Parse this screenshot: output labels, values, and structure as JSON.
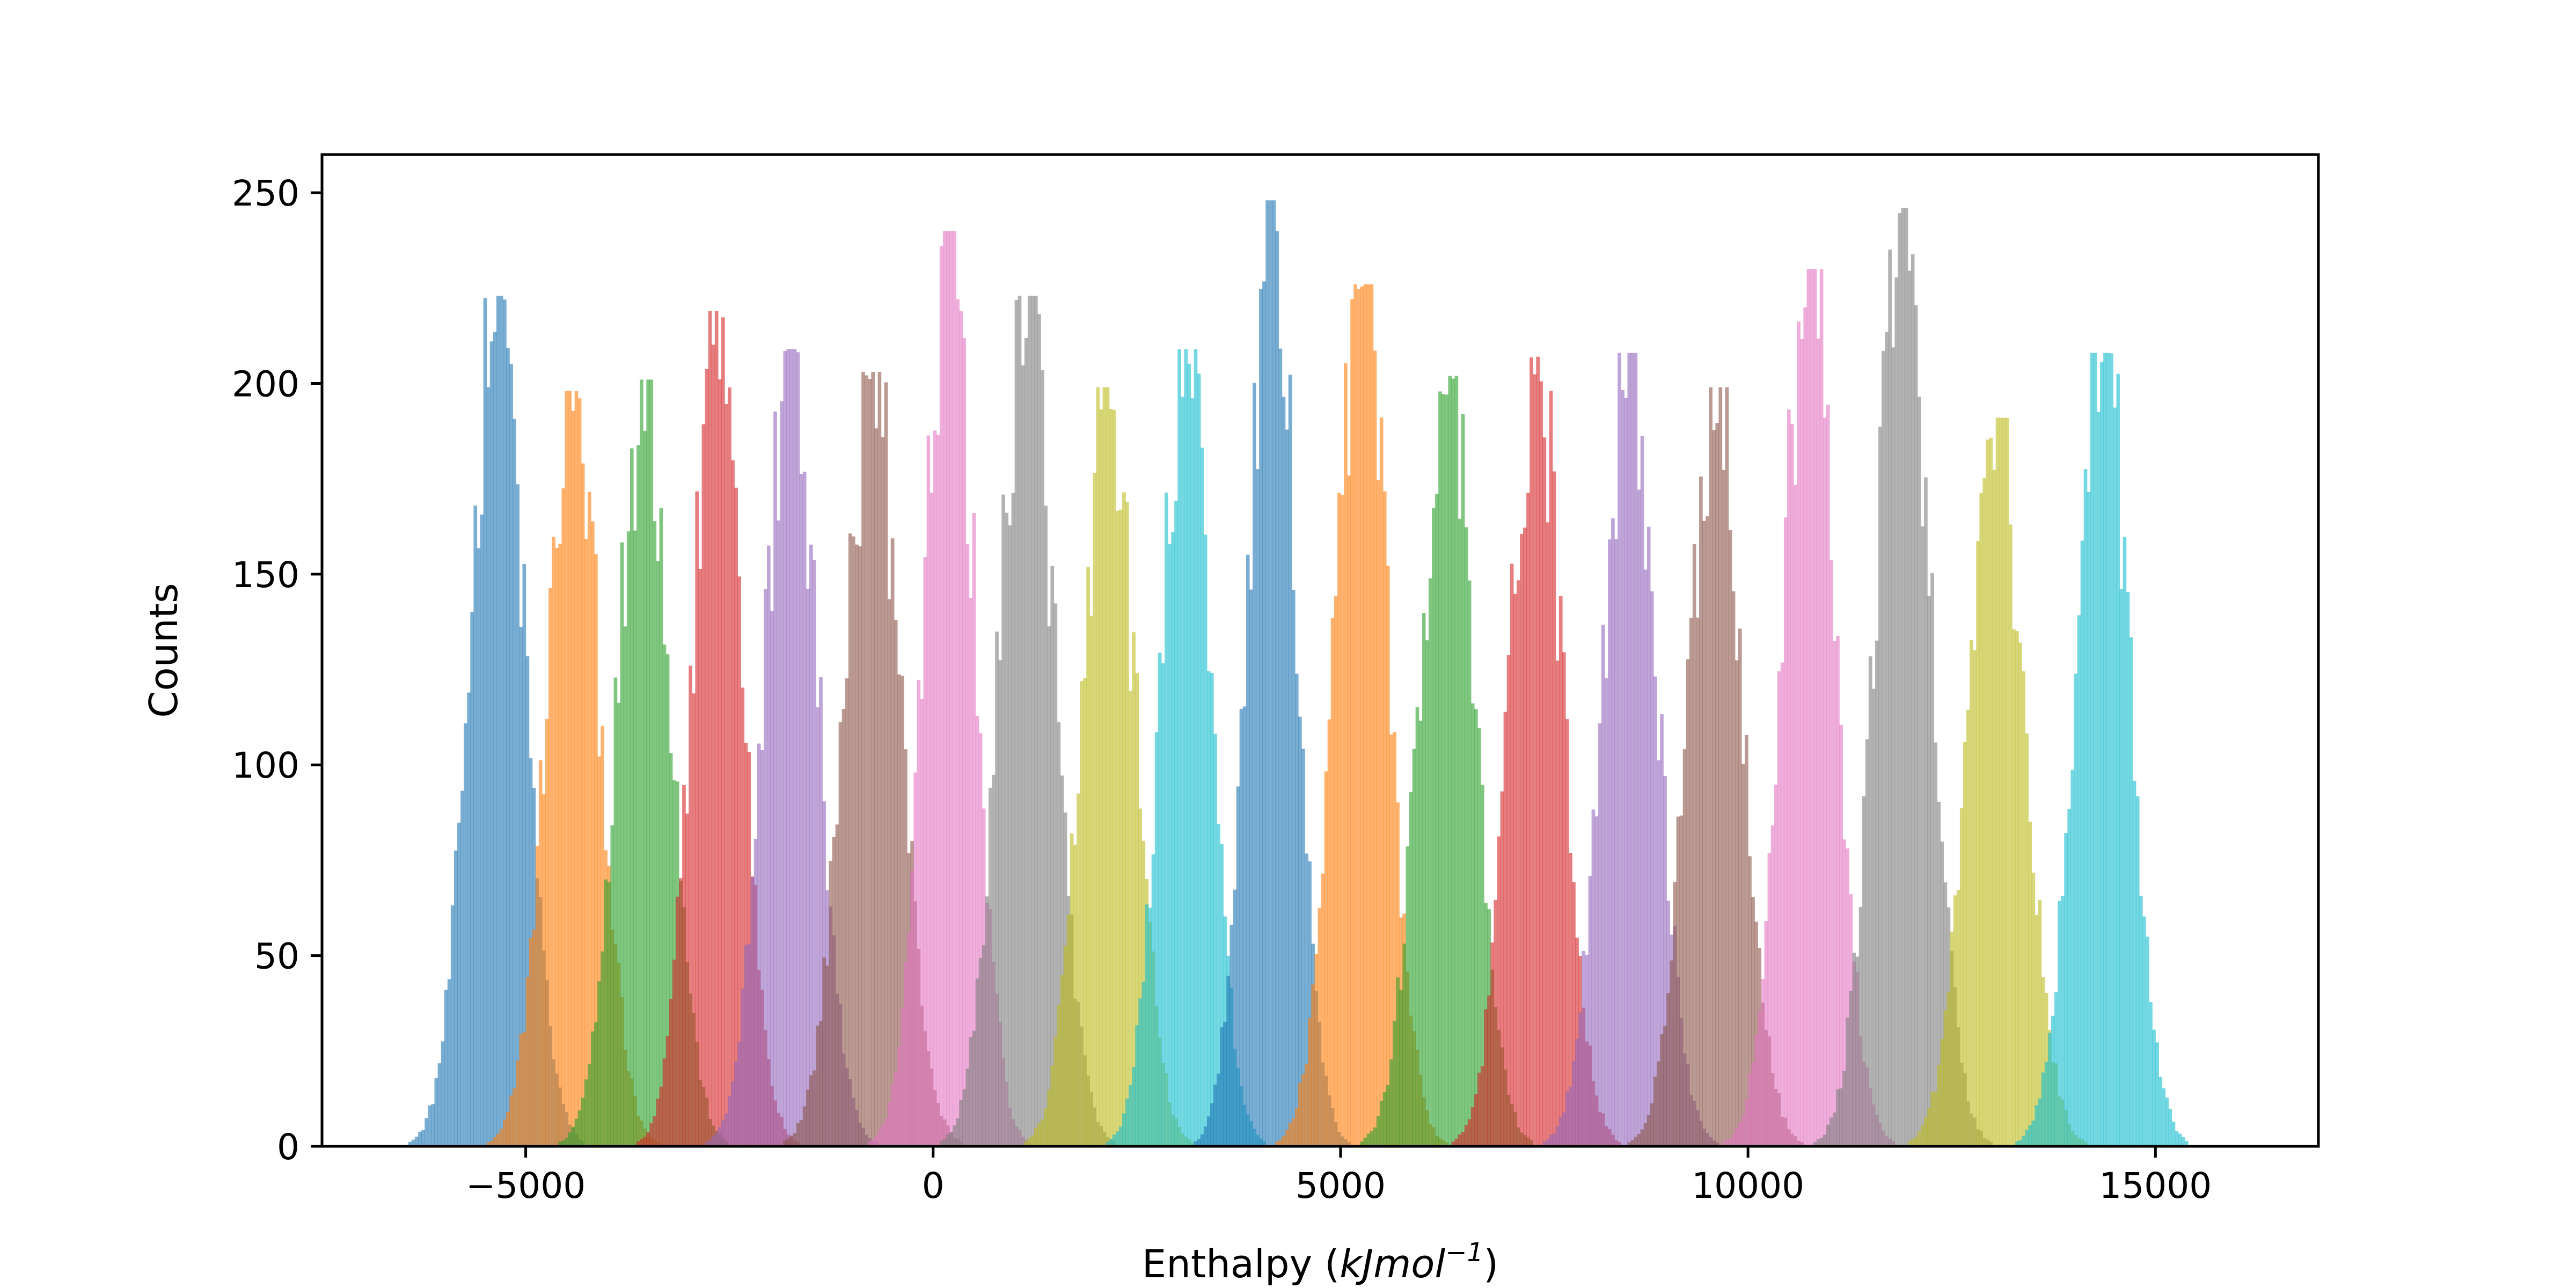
{
  "chart_data": {
    "type": "histogram",
    "title": "",
    "xlabel": "Enthalpy (",
    "xlabel_math": "kJmol",
    "xlabel_exp": "−1",
    "xlabel_close": ")",
    "ylabel": "Counts",
    "xlim": [
      -7500,
      17000
    ],
    "ylim": [
      0,
      260
    ],
    "xticks": [
      -5000,
      0,
      5000,
      10000,
      15000
    ],
    "xtick_labels": [
      "−5000",
      "0",
      "5000",
      "10000",
      "15000"
    ],
    "yticks": [
      0,
      50,
      100,
      150,
      200,
      250
    ],
    "ytick_labels": [
      "0",
      "50",
      "100",
      "150",
      "200",
      "250"
    ],
    "bin_width": 40,
    "alpha": 0.6,
    "grid": false,
    "legend": false,
    "series": [
      {
        "color": "#1f77b4",
        "center": -5350,
        "std": 330,
        "peak": 223
      },
      {
        "color": "#ff7f0e",
        "center": -4420,
        "std": 320,
        "peak": 198
      },
      {
        "color": "#2ca02c",
        "center": -3550,
        "std": 320,
        "peak": 201
      },
      {
        "color": "#d62728",
        "center": -2650,
        "std": 300,
        "peak": 219
      },
      {
        "color": "#9467bd",
        "center": -1750,
        "std": 320,
        "peak": 209
      },
      {
        "color": "#8c564b",
        "center": -750,
        "std": 340,
        "peak": 203
      },
      {
        "color": "#e377c2",
        "center": 200,
        "std": 300,
        "peak": 240
      },
      {
        "color": "#7f7f7f",
        "center": 1150,
        "std": 330,
        "peak": 223
      },
      {
        "color": "#bcbd22",
        "center": 2150,
        "std": 320,
        "peak": 199
      },
      {
        "color": "#17becf",
        "center": 3100,
        "std": 300,
        "peak": 209
      },
      {
        "color": "#1f77b4",
        "center": 4150,
        "std": 290,
        "peak": 248
      },
      {
        "color": "#ff7f0e",
        "center": 5250,
        "std": 320,
        "peak": 226
      },
      {
        "color": "#2ca02c",
        "center": 6300,
        "std": 330,
        "peak": 202
      },
      {
        "color": "#d62728",
        "center": 7400,
        "std": 320,
        "peak": 207
      },
      {
        "color": "#9467bd",
        "center": 8550,
        "std": 330,
        "peak": 208
      },
      {
        "color": "#8c564b",
        "center": 9600,
        "std": 330,
        "peak": 199
      },
      {
        "color": "#e377c2",
        "center": 10750,
        "std": 320,
        "peak": 230
      },
      {
        "color": "#7f7f7f",
        "center": 11900,
        "std": 330,
        "peak": 246
      },
      {
        "color": "#bcbd22",
        "center": 13050,
        "std": 340,
        "peak": 191
      },
      {
        "color": "#17becf",
        "center": 14350,
        "std": 330,
        "peak": 208
      }
    ]
  }
}
